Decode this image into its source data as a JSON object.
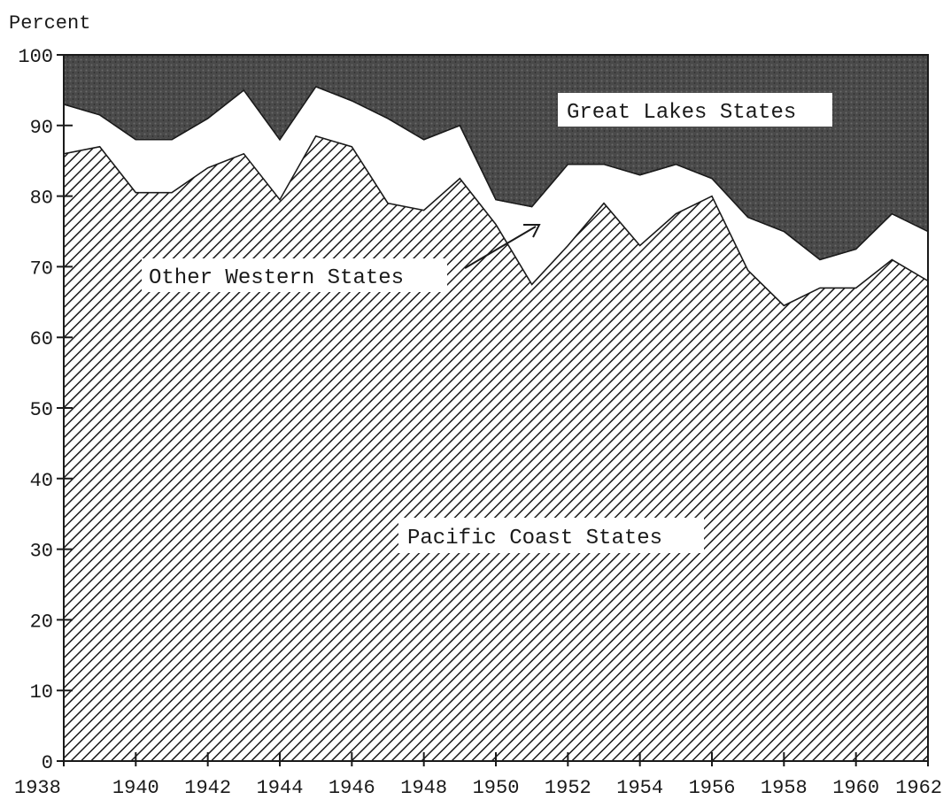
{
  "chart_data": {
    "type": "area",
    "stacked": true,
    "ylabel": "Percent",
    "xlim": [
      1938,
      1962
    ],
    "ylim": [
      0,
      100
    ],
    "y_ticks": [
      0,
      10,
      20,
      30,
      40,
      50,
      60,
      70,
      80,
      90,
      100
    ],
    "x_ticks": [
      1938,
      1940,
      1942,
      1944,
      1946,
      1948,
      1950,
      1952,
      1954,
      1956,
      1958,
      1960,
      1962
    ],
    "x": [
      1938,
      1939,
      1940,
      1941,
      1942,
      1943,
      1944,
      1945,
      1946,
      1947,
      1948,
      1949,
      1950,
      1951,
      1952,
      1953,
      1954,
      1955,
      1956,
      1957,
      1958,
      1959,
      1960,
      1961,
      1962
    ],
    "series": [
      {
        "name": "Pacific Coast States",
        "fill": "hatch",
        "cumulative_top": [
          86,
          87,
          80.5,
          80.5,
          84,
          86,
          79.5,
          88.5,
          87,
          79,
          78,
          82.5,
          76,
          67.5,
          73,
          79,
          73,
          77.5,
          80,
          69.5,
          64.5,
          67,
          67,
          71,
          68
        ]
      },
      {
        "name": "Other Western States",
        "fill": "#ffffff",
        "cumulative_top": [
          93,
          91.5,
          88,
          88,
          91,
          95,
          88,
          95.5,
          93.5,
          91,
          88,
          90,
          79.5,
          78.5,
          84.5,
          84.5,
          83,
          84.5,
          82.5,
          77,
          75,
          71,
          72.5,
          77.5,
          75
        ]
      },
      {
        "name": "Great Lakes States",
        "fill": "#4a4a4a",
        "cumulative_top": [
          100,
          100,
          100,
          100,
          100,
          100,
          100,
          100,
          100,
          100,
          100,
          100,
          100,
          100,
          100,
          100,
          100,
          100,
          100,
          100,
          100,
          100,
          100,
          100,
          100
        ]
      }
    ],
    "annotations": [
      {
        "text": "Great Lakes States"
      },
      {
        "text": "Other Western States"
      },
      {
        "text": "Pacific Coast States"
      }
    ],
    "colors": {
      "ink": "#1a1a1a",
      "great_lakes_fill": "#4a4a4a",
      "background": "#ffffff"
    }
  }
}
